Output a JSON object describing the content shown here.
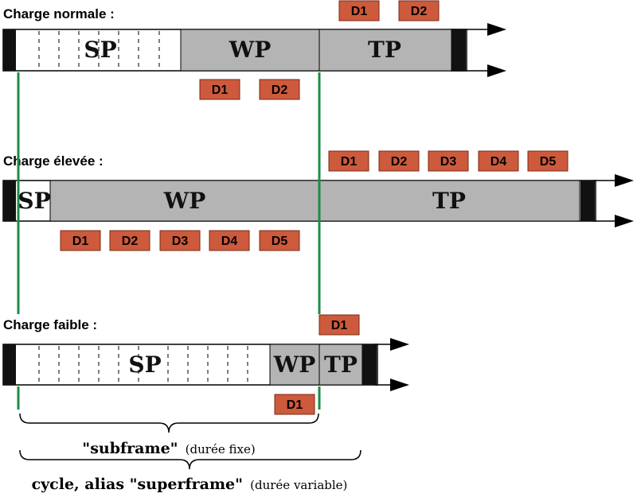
{
  "scenarios": [
    {
      "title": "Charge normale :",
      "segments": {
        "sp": "SP",
        "wp": "WP",
        "tp": "TP"
      },
      "above": [
        "D1",
        "D2"
      ],
      "below": [
        "D1",
        "D2"
      ]
    },
    {
      "title": "Charge élevée :",
      "segments": {
        "sp": "SP",
        "wp": "WP",
        "tp": "TP"
      },
      "above": [
        "D1",
        "D2",
        "D3",
        "D4",
        "D5"
      ],
      "below": [
        "D1",
        "D2",
        "D3",
        "D4",
        "D5"
      ]
    },
    {
      "title": "Charge faible :",
      "segments": {
        "sp": "SP",
        "wp": "WP",
        "tp": "TP"
      },
      "above": [
        "D1"
      ],
      "below": [
        "D1"
      ]
    }
  ],
  "captions": {
    "subframe_bold": "\"subframe\"",
    "subframe_note": "(durée fixe)",
    "superframe_bold": "cycle, alias \"superframe\"",
    "superframe_note": "(durée variable)"
  },
  "colors": {
    "packet": "#cd5a3c",
    "shaded": "#b4b4b4",
    "guide": "#1e8c46",
    "bar_end": "#111111"
  }
}
